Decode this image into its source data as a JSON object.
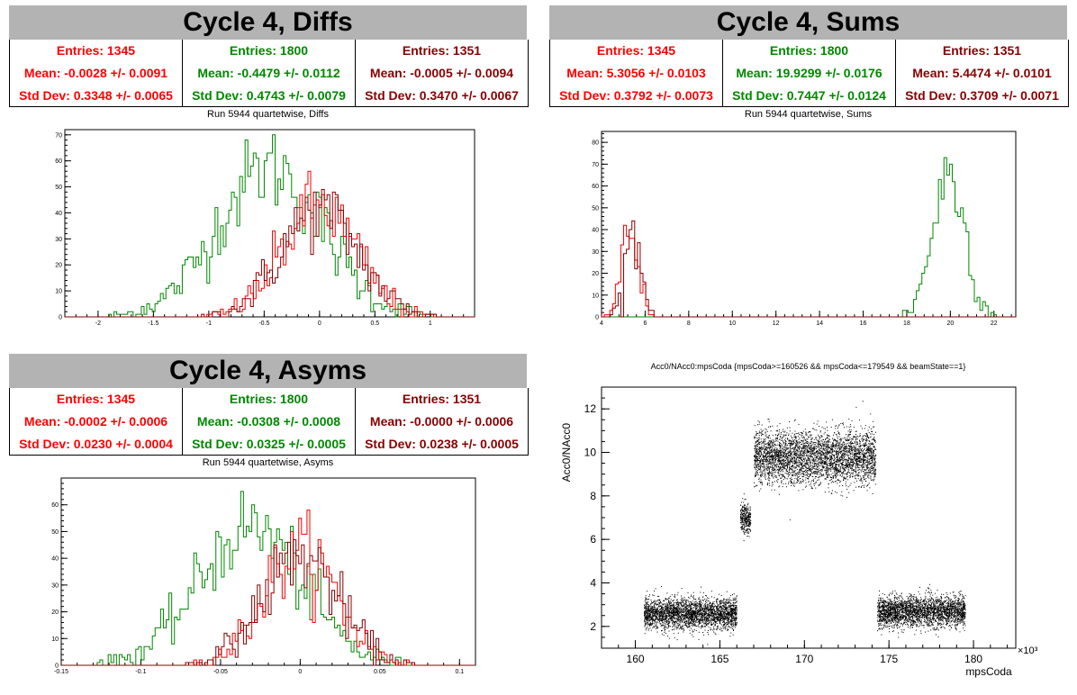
{
  "colors": {
    "s1": "#ff0000",
    "s2": "#008800",
    "s3": "#880000",
    "title_bg": "#b3b3b3"
  },
  "panels": {
    "diffs": {
      "title": "Cycle 4, Diffs",
      "subtitle": "Run 5944 quartetwise, Diffs",
      "stats": [
        {
          "entries": "Entries: 1345",
          "mean": "Mean: -0.0028 +/- 0.0091",
          "std": "Std Dev: 0.3348 +/- 0.0065"
        },
        {
          "entries": "Entries: 1800",
          "mean": "Mean: -0.4479 +/- 0.0112",
          "std": "Std Dev: 0.4743 +/- 0.0079"
        },
        {
          "entries": "Entries: 1351",
          "mean": "Mean: -0.0005 +/- 0.0094",
          "std": "Std Dev: 0.3470 +/- 0.0067"
        }
      ]
    },
    "sums": {
      "title": "Cycle 4, Sums",
      "subtitle": "Run 5944 quartetwise, Sums",
      "stats": [
        {
          "entries": "Entries: 1345",
          "mean": "Mean: 5.3056 +/- 0.0103",
          "std": "Std Dev: 0.3792 +/- 0.0073"
        },
        {
          "entries": "Entries: 1800",
          "mean": "Mean: 19.9299 +/- 0.0176",
          "std": "Std Dev: 0.7447 +/- 0.0124"
        },
        {
          "entries": "Entries: 1351",
          "mean": "Mean: 5.4474 +/- 0.0101",
          "std": "Std Dev: 0.3709 +/- 0.0071"
        }
      ]
    },
    "asyms": {
      "title": "Cycle 4, Asyms",
      "subtitle": "Run 5944 quartetwise, Asyms",
      "stats": [
        {
          "entries": "Entries: 1345",
          "mean": "Mean: -0.0002 +/- 0.0006",
          "std": "Std Dev: 0.0230 +/- 0.0004"
        },
        {
          "entries": "Entries: 1800",
          "mean": "Mean: -0.0308 +/- 0.0008",
          "std": "Std Dev: 0.0325 +/- 0.0005"
        },
        {
          "entries": "Entries: 1351",
          "mean": "Mean: -0.0000 +/- 0.0006",
          "std": "Std Dev: 0.0238 +/- 0.0005"
        }
      ]
    },
    "scatter": {
      "title": "Acc0/NAcc0:mpsCoda {mpsCoda>=160526 && mpsCoda<=179549 && beamState==1}",
      "xlabel": "mpsCoda",
      "ylabel": "Acc0/NAcc0",
      "exponent": "×10³"
    }
  },
  "chart_data": [
    {
      "type": "histogram",
      "name": "diffs",
      "xlim": [
        -2.3,
        1.4
      ],
      "ylim": [
        0,
        72
      ],
      "xticks": [
        -2,
        -1.5,
        -1,
        -0.5,
        0,
        0.5,
        1
      ],
      "xtick_labels": [
        "-2",
        "-1.5",
        "-1",
        "-0.5",
        "0",
        "0.5",
        "1"
      ],
      "yticks": [
        0,
        10,
        20,
        30,
        40,
        50,
        60,
        70
      ],
      "series": [
        {
          "color": "#008800",
          "mean": -0.448,
          "std": 0.474,
          "peak": 70
        },
        {
          "color": "#ff0000",
          "mean": -0.003,
          "std": 0.335,
          "peak": 52
        },
        {
          "color": "#880000",
          "mean": -0.001,
          "std": 0.347,
          "peak": 50
        }
      ]
    },
    {
      "type": "histogram",
      "name": "sums",
      "xlim": [
        4,
        23
      ],
      "ylim": [
        0,
        85
      ],
      "xticks": [
        4,
        6,
        8,
        10,
        12,
        14,
        16,
        18,
        20,
        22
      ],
      "xtick_labels": [
        "4",
        "6",
        "8",
        "10",
        "12",
        "14",
        "16",
        "18",
        "20",
        "22"
      ],
      "yticks": [
        0,
        10,
        20,
        30,
        40,
        50,
        60,
        70,
        80
      ],
      "series": [
        {
          "color": "#008800",
          "mean": 19.93,
          "std": 0.745,
          "peak": 80
        },
        {
          "color": "#ff0000",
          "mean": 5.31,
          "std": 0.379,
          "peak": 48
        },
        {
          "color": "#880000",
          "mean": 5.45,
          "std": 0.371,
          "peak": 46
        }
      ]
    },
    {
      "type": "histogram",
      "name": "asyms",
      "xlim": [
        -0.15,
        0.11
      ],
      "ylim": [
        0,
        70
      ],
      "xticks": [
        -0.15,
        -0.1,
        -0.05,
        0,
        0.05,
        0.1
      ],
      "xtick_labels": [
        "-0.15",
        "-0.1",
        "-0.05",
        "0",
        "0.05",
        "0.1"
      ],
      "yticks": [
        0,
        10,
        20,
        30,
        40,
        50,
        60
      ],
      "series": [
        {
          "color": "#008800",
          "mean": -0.031,
          "std": 0.0325,
          "peak": 63
        },
        {
          "color": "#ff0000",
          "mean": 0.0,
          "std": 0.023,
          "peak": 52
        },
        {
          "color": "#880000",
          "mean": 0.0,
          "std": 0.0238,
          "peak": 50
        }
      ]
    },
    {
      "type": "scatter",
      "name": "scatter",
      "xlim": [
        158,
        182.5
      ],
      "ylim": [
        1,
        13
      ],
      "xticks": [
        160,
        165,
        170,
        175,
        180
      ],
      "yticks": [
        2,
        4,
        6,
        8,
        10,
        12
      ],
      "segments": [
        {
          "x": [
            160.5,
            166.0
          ],
          "y": 2.6,
          "spread": 0.35
        },
        {
          "x": [
            166.2,
            166.8
          ],
          "y": 7.0,
          "spread": 0.35
        },
        {
          "x": [
            167.0,
            174.2
          ],
          "y": 9.8,
          "spread": 0.6
        },
        {
          "x": [
            174.3,
            179.5
          ],
          "y": 2.7,
          "spread": 0.35
        }
      ]
    }
  ]
}
